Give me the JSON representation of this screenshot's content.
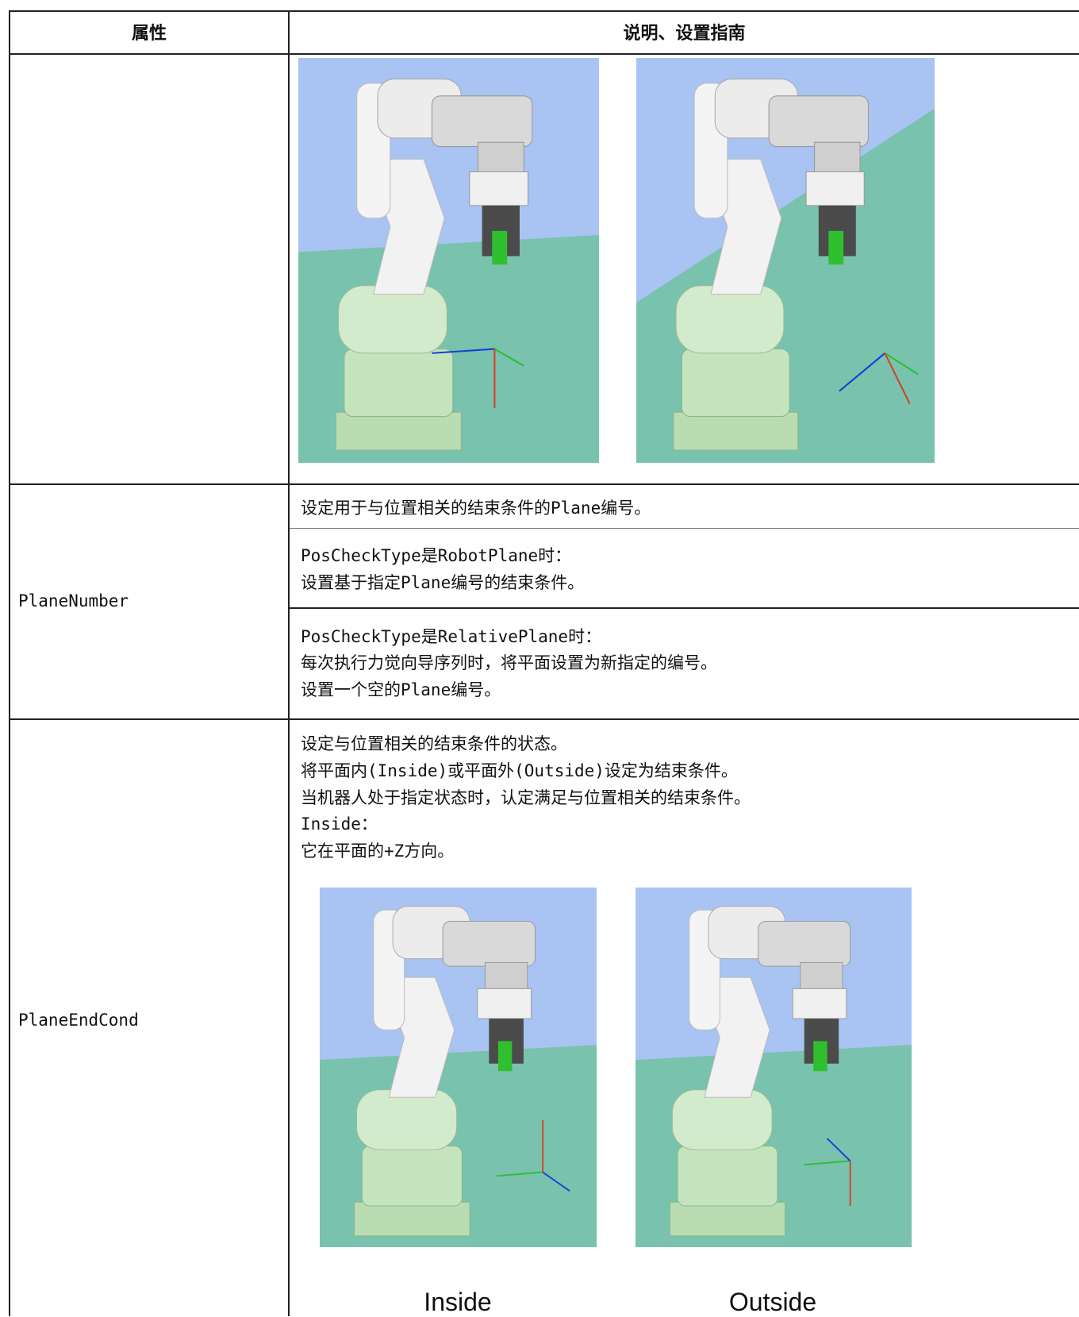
{
  "table": {
    "header": [
      "属性",
      "说明、设置指南"
    ],
    "rows": [
      {
        "property": "PlaneNumber",
        "cells": [
          [
            "设定用于与位置相关的结束条件的Plane编号。"
          ],
          [
            "PosCheckType是RobotPlane时：",
            "设置基于指定Plane编号的结束条件。"
          ],
          [
            "PosCheckType是RelativePlane时：",
            "每次执行力觉向导序列时，将平面设置为新指定的编号。",
            "设置一个空的Plane编号。"
          ]
        ]
      },
      {
        "property": "PlaneEndCond",
        "lines": [
          "设定与位置相关的结束条件的状态。",
          "将平面内(Inside)或平面外(Outside)设定为结束条件。",
          "当机器人处于指定状态时，认定满足与位置相关的结束条件。",
          "Inside：",
          "它在平面的+Z方向。"
        ],
        "figure_captions": [
          "Inside",
          "Outside"
        ]
      }
    ]
  }
}
